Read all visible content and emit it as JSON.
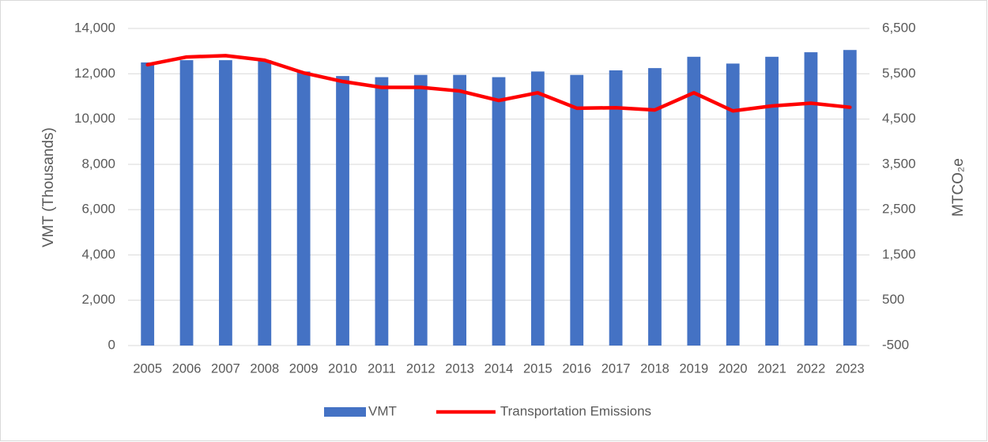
{
  "chart_data": {
    "type": "bar_line",
    "categories": [
      "2005",
      "2006",
      "2007",
      "2008",
      "2009",
      "2010",
      "2011",
      "2012",
      "2013",
      "2014",
      "2015",
      "2016",
      "2017",
      "2018",
      "2019",
      "2020",
      "2021",
      "2022",
      "2023"
    ],
    "series": [
      {
        "name": "VMT",
        "type": "bar",
        "color": "#4472c4",
        "axis": "y",
        "values": [
          12500,
          12600,
          12600,
          12600,
          12100,
          11900,
          11850,
          11950,
          11950,
          11850,
          12100,
          11950,
          12150,
          12250,
          12750,
          12450,
          12750,
          12950,
          13050
        ]
      },
      {
        "name": "Transportation Emissions",
        "type": "line",
        "color": "#ff0000",
        "axis": "y2",
        "values": [
          5700,
          5870,
          5900,
          5800,
          5520,
          5330,
          5200,
          5200,
          5120,
          4910,
          5080,
          4740,
          4750,
          4700,
          5080,
          4680,
          4790,
          4850,
          4760
        ]
      }
    ],
    "ylabel": "VMT (Thousands)",
    "y2label": "MTCO₂e",
    "ylim": [
      0,
      14000
    ],
    "yticks": [
      0,
      {
        "value": 2000,
        "label": "2,000"
      },
      {
        "value": 4000,
        "label": "4,000"
      },
      {
        "value": 6000,
        "label": "6,000"
      },
      {
        "value": 8000,
        "label": "8,000"
      },
      {
        "value": 10000,
        "label": "10,000"
      },
      {
        "value": 12000,
        "label": "12,000"
      },
      {
        "value": 14000,
        "label": "14,000"
      }
    ],
    "y2lim": [
      -500,
      6500
    ],
    "y2ticks": [
      -500,
      500,
      {
        "value": 1500,
        "label": "1,500"
      },
      {
        "value": 2500,
        "label": "2,500"
      },
      {
        "value": 3500,
        "label": "3,500"
      },
      {
        "value": 4500,
        "label": "4,500"
      },
      {
        "value": 5500,
        "label": "5,500"
      },
      {
        "value": 6500,
        "label": "6,500"
      }
    ],
    "grid": true,
    "legend": "bottom"
  }
}
